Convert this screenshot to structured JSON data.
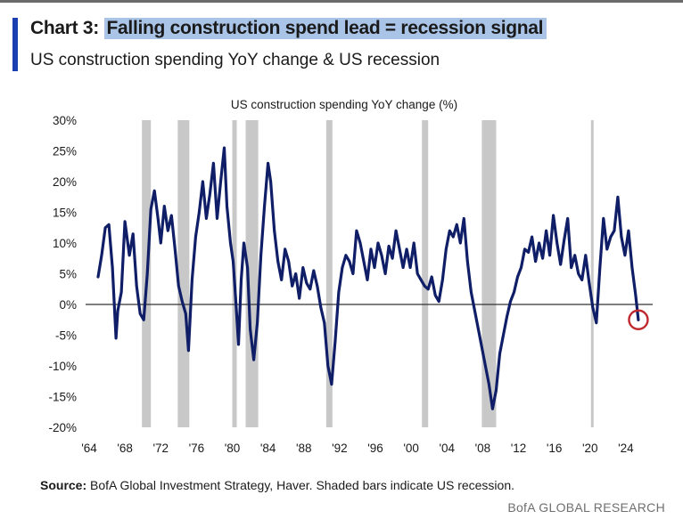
{
  "header": {
    "chart_label": "Chart 3:",
    "title": "Falling construction spend lead = recession signal",
    "subtitle": "US construction spending YoY change & US recession"
  },
  "footer": {
    "source_label": "Source:",
    "source_text": "BofA Global Investment Strategy, Haver. Shaded bars indicate US recession.",
    "brand": "BofA GLOBAL RESEARCH"
  },
  "colors": {
    "line": "#0f1e66",
    "recession": "#c8c8c8",
    "highlight_circle": "#c0282d",
    "title_highlight": "#a9c4e6",
    "accent": "#1a3fb0"
  },
  "chart_data": {
    "type": "line",
    "title": "US construction spending YoY change (%)",
    "xlabel": "",
    "ylabel": "",
    "xlim": [
      1964,
      2027
    ],
    "ylim": [
      -20,
      30
    ],
    "x_ticks": [
      1964,
      1968,
      1972,
      1976,
      1980,
      1984,
      1988,
      1992,
      1996,
      2000,
      2004,
      2008,
      2012,
      2016,
      2020,
      2024
    ],
    "x_tick_labels": [
      "'64",
      "'68",
      "'72",
      "'76",
      "'80",
      "'84",
      "'88",
      "'92",
      "'96",
      "'00",
      "'04",
      "'08",
      "'12",
      "'16",
      "'20",
      "'24"
    ],
    "y_ticks": [
      -20,
      -15,
      -10,
      -5,
      0,
      5,
      10,
      15,
      20,
      25,
      30
    ],
    "y_tick_labels": [
      "-20%",
      "-15%",
      "-10%",
      "-5%",
      "0%",
      "5%",
      "10%",
      "15%",
      "20%",
      "25%",
      "30%"
    ],
    "grid": false,
    "recessions": [
      [
        1969.9,
        1970.9
      ],
      [
        1973.9,
        1975.2
      ],
      [
        1980.0,
        1980.5
      ],
      [
        1981.5,
        1982.9
      ],
      [
        1990.5,
        1991.2
      ],
      [
        2001.2,
        2001.9
      ],
      [
        2007.9,
        2009.5
      ],
      [
        2020.1,
        2020.4
      ]
    ],
    "series": [
      {
        "x": [
          1965.0,
          1965.4,
          1965.8,
          1966.2,
          1966.6,
          1967.0,
          1967.2,
          1967.6,
          1968.0,
          1968.5,
          1968.9,
          1969.3,
          1969.7,
          1970.1,
          1970.5,
          1970.9,
          1971.3,
          1971.7,
          1972.0,
          1972.4,
          1972.8,
          1973.2,
          1973.6,
          1974.0,
          1974.4,
          1974.8,
          1975.1,
          1975.5,
          1975.9,
          1976.3,
          1976.7,
          1977.1,
          1977.5,
          1977.9,
          1978.3,
          1978.7,
          1979.1,
          1979.4,
          1979.8,
          1980.1,
          1980.4,
          1980.7,
          1981.0,
          1981.3,
          1981.7,
          1982.0,
          1982.4,
          1982.8,
          1983.2,
          1983.6,
          1984.0,
          1984.3,
          1984.7,
          1985.1,
          1985.5,
          1985.9,
          1986.3,
          1986.7,
          1987.1,
          1987.5,
          1987.9,
          1988.3,
          1988.7,
          1989.1,
          1989.5,
          1989.9,
          1990.3,
          1990.7,
          1991.1,
          1991.5,
          1991.9,
          1992.3,
          1992.7,
          1993.1,
          1993.5,
          1993.9,
          1994.3,
          1994.7,
          1995.1,
          1995.5,
          1995.9,
          1996.3,
          1996.7,
          1997.1,
          1997.5,
          1997.9,
          1998.3,
          1998.7,
          1999.1,
          1999.5,
          1999.9,
          2000.3,
          2000.7,
          2001.1,
          2001.5,
          2001.9,
          2002.3,
          2002.7,
          2003.1,
          2003.5,
          2003.9,
          2004.3,
          2004.7,
          2005.1,
          2005.5,
          2005.9,
          2006.3,
          2006.7,
          2007.1,
          2007.5,
          2007.9,
          2008.3,
          2008.7,
          2009.1,
          2009.5,
          2009.9,
          2010.3,
          2010.7,
          2011.1,
          2011.5,
          2011.9,
          2012.3,
          2012.7,
          2013.1,
          2013.5,
          2013.9,
          2014.3,
          2014.7,
          2015.1,
          2015.5,
          2015.9,
          2016.3,
          2016.7,
          2017.1,
          2017.5,
          2017.9,
          2018.3,
          2018.7,
          2019.1,
          2019.5,
          2019.9,
          2020.3,
          2020.7,
          2021.1,
          2021.5,
          2021.9,
          2022.3,
          2022.7,
          2023.1,
          2023.5,
          2023.9,
          2024.3,
          2024.7,
          2025.1,
          2025.4
        ],
        "values": [
          4.5,
          8.0,
          12.5,
          13.0,
          6.0,
          -5.5,
          -1.0,
          2.0,
          13.5,
          8.0,
          11.5,
          3.0,
          -1.5,
          -2.5,
          5.0,
          15.5,
          18.5,
          14.0,
          10.0,
          16.0,
          12.0,
          14.5,
          9.0,
          3.0,
          0.5,
          -1.5,
          -7.5,
          4.0,
          11.0,
          15.0,
          20.0,
          14.0,
          18.0,
          23.0,
          14.0,
          20.0,
          25.5,
          16.0,
          10.0,
          7.0,
          0.5,
          -6.5,
          4.0,
          10.0,
          6.0,
          -4.0,
          -9.0,
          -3.0,
          8.0,
          16.0,
          23.0,
          20.0,
          12.0,
          7.0,
          4.0,
          9.0,
          7.0,
          3.0,
          5.0,
          1.0,
          6.0,
          3.5,
          2.5,
          5.5,
          3.0,
          -0.5,
          -3.0,
          -10.0,
          -13.0,
          -6.0,
          2.0,
          6.0,
          8.0,
          7.0,
          5.0,
          12.0,
          10.0,
          7.0,
          4.0,
          9.0,
          6.0,
          10.0,
          8.0,
          5.0,
          9.5,
          7.5,
          12.0,
          9.0,
          6.0,
          9.0,
          6.0,
          10.0,
          5.0,
          4.0,
          3.0,
          2.5,
          4.5,
          1.5,
          0.5,
          4.0,
          9.0,
          12.0,
          11.0,
          13.0,
          10.0,
          14.0,
          7.0,
          2.0,
          -1.0,
          -4.0,
          -7.0,
          -10.0,
          -13.0,
          -17.0,
          -14.0,
          -8.0,
          -5.0,
          -2.0,
          0.5,
          2.0,
          4.5,
          6.0,
          9.0,
          8.5,
          11.0,
          7.0,
          10.0,
          7.5,
          12.0,
          8.0,
          14.5,
          10.0,
          6.5,
          10.5,
          14.0,
          6.0,
          8.0,
          5.0,
          4.0,
          8.0,
          3.5,
          -0.5,
          -3.0,
          6.0,
          14.0,
          9.0,
          11.0,
          12.0,
          17.5,
          11.0,
          8.0,
          12.0,
          6.0,
          1.5,
          -2.5
        ]
      }
    ],
    "highlight": {
      "x": 2025.4,
      "y": -2.5
    }
  }
}
